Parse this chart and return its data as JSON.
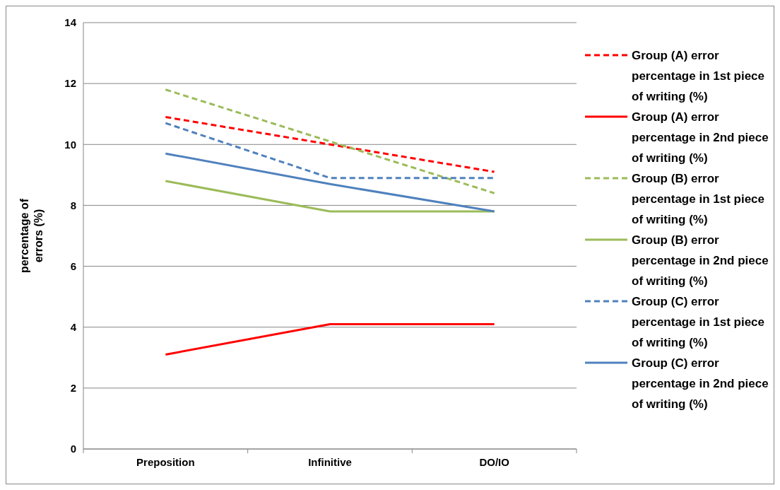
{
  "chart_data": {
    "type": "line",
    "ylabel": "percentage of errors (%)",
    "categories": [
      "Preposition",
      "Infinitive",
      "DO/IO"
    ],
    "ylim": [
      0,
      14
    ],
    "yticks": [
      0,
      2,
      4,
      6,
      8,
      10,
      12,
      14
    ],
    "grid": "y",
    "legend": "right",
    "marker": "none",
    "series": [
      {
        "name": "Group (A) error percentage in 1st piece of writing (%)",
        "color": "#ff0000",
        "line_style": "dashed",
        "values": [
          10.9,
          10.0,
          9.1
        ]
      },
      {
        "name": "Group (A) error percentage in 2nd piece of writing (%)",
        "color": "#ff0000",
        "line_style": "solid",
        "values": [
          3.1,
          4.1,
          4.1
        ]
      },
      {
        "name": "Group (B) error percentage in 1st piece of writing (%)",
        "color": "#9bbb59",
        "line_style": "dashed",
        "values": [
          11.8,
          10.1,
          8.4
        ]
      },
      {
        "name": "Group (B) error percentage in 2nd piece of writing (%)",
        "color": "#9bbb59",
        "line_style": "solid",
        "values": [
          8.8,
          7.8,
          7.8
        ]
      },
      {
        "name": "Group (C) error percentage in 1st piece of writing (%)",
        "color": "#4f81bd",
        "line_style": "dashed",
        "values": [
          10.7,
          8.9,
          8.9
        ]
      },
      {
        "name": "Group (C) error percentage in 2nd piece of writing (%)",
        "color": "#4f81bd",
        "line_style": "solid",
        "values": [
          9.7,
          8.7,
          7.8
        ]
      }
    ]
  }
}
